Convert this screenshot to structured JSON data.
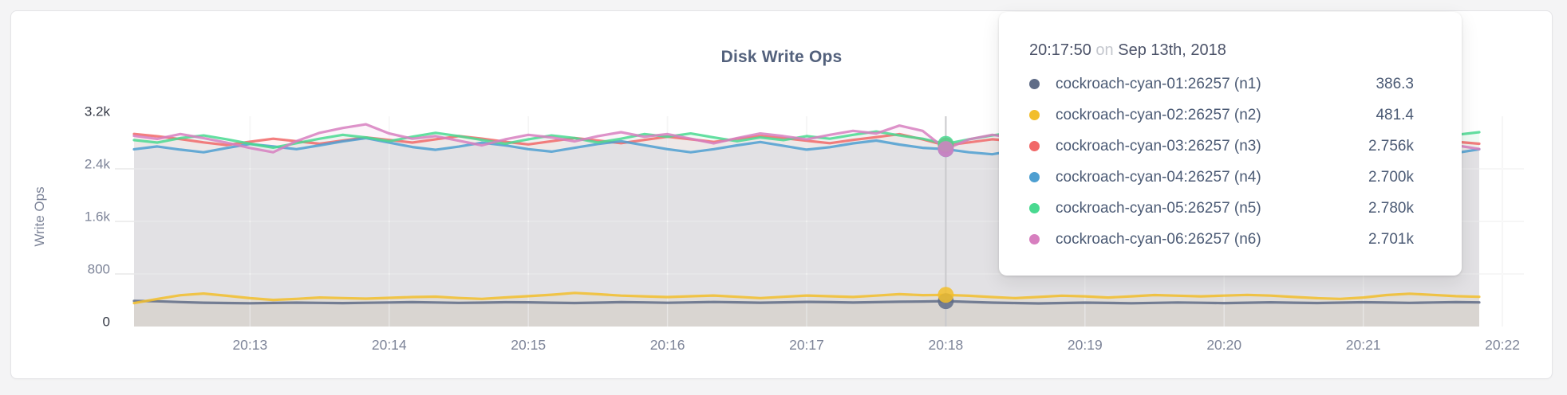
{
  "theme": {
    "page_background": "#f4f4f5",
    "card_background": "#ffffff",
    "grid_color": "#e9e9e9",
    "grid_overlay_color": "rgba(255,255,255,0.55)",
    "guideline_color": "#c9c9cc",
    "axis_label_color": "#7d8498",
    "axis_extreme_color": "#343945",
    "title_color": "#53617c"
  },
  "chart_data": {
    "type": "line",
    "title": "Disk Write Ops",
    "xlabel": "",
    "ylabel": "Write Ops",
    "ylim": [
      0,
      3200
    ],
    "grid": true,
    "legend_position": "tooltip-only",
    "yticks": [
      {
        "value": 0,
        "label": "0"
      },
      {
        "value": 800,
        "label": "800"
      },
      {
        "value": 1600,
        "label": "1.6k"
      },
      {
        "value": 2400,
        "label": "2.4k"
      },
      {
        "value": 3200,
        "label": "3.2k"
      }
    ],
    "x_tick_labels": [
      "20:13",
      "20:14",
      "20:15",
      "20:16",
      "20:17",
      "20:18",
      "20:19",
      "20:20",
      "20:21",
      "20:22"
    ],
    "x_tick_indices": [
      5,
      11,
      17,
      23,
      29,
      35,
      41,
      47,
      53,
      59
    ],
    "sample_interval_seconds": 10,
    "hover": {
      "index": 35,
      "time": "20:17:50",
      "date": "Sep 13th, 2018"
    },
    "series": [
      {
        "name": "cockroach-cyan-01:26257 (n1)",
        "color": "#5F6C87",
        "values": [
          390,
          384,
          372,
          363,
          357,
          354,
          359,
          364,
          360,
          356,
          361,
          366,
          371,
          366,
          360,
          364,
          370,
          368,
          362,
          357,
          364,
          371,
          367,
          361,
          367,
          373,
          369,
          363,
          369,
          375,
          371,
          365,
          371,
          377,
          380,
          386.3,
          374,
          364,
          357,
          352,
          358,
          364,
          359,
          354,
          360,
          366,
          361,
          356,
          362,
          368,
          363,
          358,
          364,
          370,
          365,
          360,
          366,
          371,
          367
        ]
      },
      {
        "name": "cockroach-cyan-02:26257 (n2)",
        "color": "#F2BE2C",
        "values": [
          356,
          420,
          476,
          502,
          468,
          432,
          405,
          421,
          441,
          433,
          424,
          436,
          448,
          455,
          434,
          421,
          442,
          462,
          484,
          512,
          492,
          470,
          459,
          449,
          461,
          472,
          452,
          433,
          452,
          472,
          461,
          450,
          470,
          492,
          478,
          481.4,
          468,
          449,
          431,
          450,
          469,
          459,
          441,
          460,
          479,
          469,
          459,
          470,
          481,
          470,
          450,
          431,
          421,
          441,
          479,
          500,
          481,
          462,
          452
        ]
      },
      {
        "name": "cockroach-cyan-03:26257 (n3)",
        "color": "#F16969",
        "values": [
          2930,
          2896,
          2852,
          2803,
          2762,
          2812,
          2858,
          2820,
          2782,
          2830,
          2878,
          2840,
          2800,
          2850,
          2898,
          2860,
          2812,
          2772,
          2820,
          2868,
          2830,
          2790,
          2840,
          2888,
          2850,
          2810,
          2858,
          2900,
          2868,
          2828,
          2790,
          2840,
          2882,
          2928,
          2848,
          2756,
          2802,
          2850,
          2820,
          2782,
          2830,
          2870,
          2840,
          2800,
          2762,
          2812,
          2858,
          2830,
          2790,
          2840,
          2800,
          2762,
          2820,
          2868,
          2840,
          2800,
          2848,
          2812,
          2782
        ]
      },
      {
        "name": "cockroach-cyan-04:26257 (n4)",
        "color": "#4E9FD1",
        "values": [
          2698,
          2740,
          2692,
          2652,
          2718,
          2778,
          2740,
          2700,
          2758,
          2818,
          2868,
          2800,
          2732,
          2690,
          2738,
          2798,
          2758,
          2700,
          2662,
          2720,
          2778,
          2820,
          2760,
          2700,
          2652,
          2700,
          2758,
          2808,
          2750,
          2692,
          2730,
          2788,
          2830,
          2770,
          2720,
          2700,
          2652,
          2622,
          2680,
          2738,
          2700,
          2660,
          2710,
          2768,
          2730,
          2680,
          2642,
          2700,
          2758,
          2798,
          2740,
          2690,
          2652,
          2710,
          2760,
          2720,
          2682,
          2642,
          2698
        ]
      },
      {
        "name": "cockroach-cyan-05:26257 (n5)",
        "color": "#49D990",
        "values": [
          2838,
          2800,
          2868,
          2908,
          2850,
          2782,
          2722,
          2790,
          2858,
          2918,
          2878,
          2820,
          2888,
          2948,
          2898,
          2840,
          2782,
          2850,
          2908,
          2868,
          2800,
          2858,
          2928,
          2888,
          2938,
          2878,
          2820,
          2878,
          2838,
          2898,
          2858,
          2918,
          2968,
          2908,
          2858,
          2780,
          2850,
          2908,
          2958,
          3008,
          2948,
          2888,
          2928,
          2988,
          3048,
          2968,
          2898,
          2848,
          2908,
          2868,
          2928,
          2888,
          2828,
          2888,
          2938,
          2898,
          2848,
          2918,
          2958
        ]
      },
      {
        "name": "cockroach-cyan-06:26257 (n6)",
        "color": "#D77FBF",
        "values": [
          2902,
          2856,
          2930,
          2868,
          2798,
          2718,
          2652,
          2822,
          2948,
          3022,
          3078,
          2938,
          2858,
          2898,
          2828,
          2758,
          2848,
          2918,
          2878,
          2818,
          2898,
          2958,
          2888,
          2928,
          2858,
          2788,
          2868,
          2938,
          2898,
          2848,
          2918,
          2978,
          2938,
          3058,
          2978,
          2701,
          2848,
          2918,
          2868,
          2798,
          2878,
          2948,
          3018,
          3088,
          3118,
          2978,
          2868,
          2818,
          2898,
          2958,
          2908,
          2848,
          2778,
          2718,
          2798,
          2868,
          2828,
          2758,
          2702
        ]
      }
    ]
  },
  "tooltip": {
    "time": "20:17:50",
    "conjunction": "on",
    "date": "Sep 13th, 2018",
    "rows": [
      {
        "label": "cockroach-cyan-01:26257 (n1)",
        "value": "386.3",
        "color": "#5F6C87"
      },
      {
        "label": "cockroach-cyan-02:26257 (n2)",
        "value": "481.4",
        "color": "#F2BE2C"
      },
      {
        "label": "cockroach-cyan-03:26257 (n3)",
        "value": "2.756k",
        "color": "#F16969"
      },
      {
        "label": "cockroach-cyan-04:26257 (n4)",
        "value": "2.700k",
        "color": "#4E9FD1"
      },
      {
        "label": "cockroach-cyan-05:26257 (n5)",
        "value": "2.780k",
        "color": "#49D990"
      },
      {
        "label": "cockroach-cyan-06:26257 (n6)",
        "value": "2.701k",
        "color": "#D77FBF"
      }
    ]
  }
}
